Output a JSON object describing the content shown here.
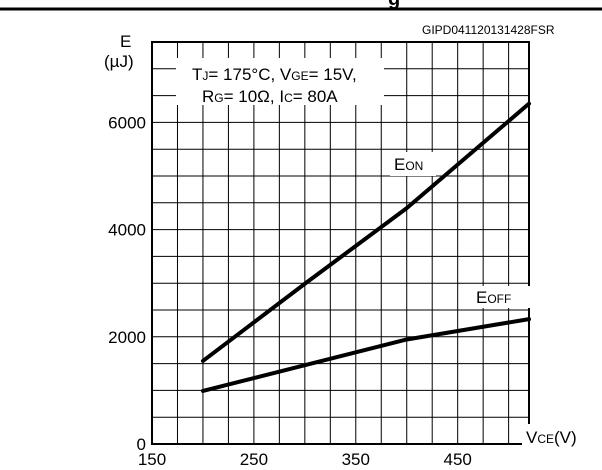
{
  "chart_data": {
    "type": "line",
    "header_title": "g",
    "figure_code": "GIPD041120131428FSR",
    "ylabel_top": "E",
    "ylabel_unit": "(µJ)",
    "conditions": {
      "line1": {
        "p1": "T",
        "p1_sub": "J",
        "p2": "= 175°C, V",
        "p2_sub": "GE",
        "p3": "= 15V,"
      },
      "line2": {
        "p1": "R",
        "p1_sub": "G",
        "p2": "= 10Ω, I",
        "p2_sub": "C",
        "p3": "= 80A"
      }
    },
    "xlabel": {
      "main": "V",
      "sub": "CE",
      "unit": "(V)"
    },
    "x_ticks": [
      "150",
      "250",
      "350",
      "450"
    ],
    "y_ticks": [
      "0",
      "2000",
      "4000",
      "6000"
    ],
    "xlim": [
      150,
      520
    ],
    "ylim": [
      0,
      7500
    ],
    "grid": true,
    "series": [
      {
        "name_main": "E",
        "name_sub": "ON",
        "x": [
          200,
          300,
          400,
          520
        ],
        "y": [
          1550,
          2990,
          4400,
          6350
        ]
      },
      {
        "name_main": "E",
        "name_sub": "OFF",
        "x": [
          200,
          300,
          400,
          520
        ],
        "y": [
          990,
          1470,
          1950,
          2330
        ]
      }
    ]
  }
}
